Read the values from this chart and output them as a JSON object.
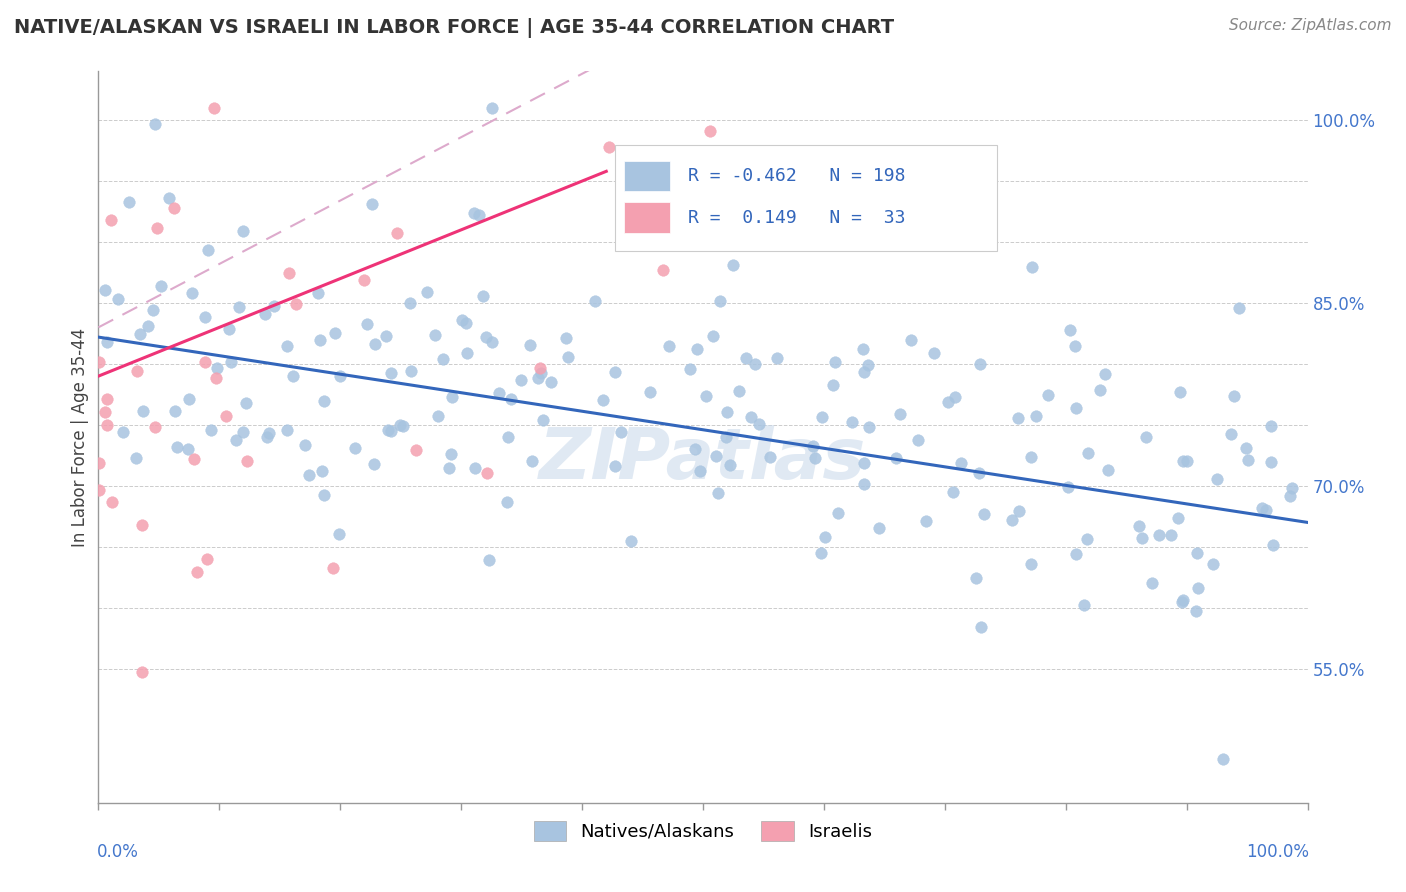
{
  "title": "NATIVE/ALASKAN VS ISRAELI IN LABOR FORCE | AGE 35-44 CORRELATION CHART",
  "source": "Source: ZipAtlas.com",
  "ylabel": "In Labor Force | Age 35-44",
  "ytick_vals": [
    0.55,
    0.6,
    0.65,
    0.7,
    0.75,
    0.8,
    0.85,
    0.9,
    0.95,
    1.0
  ],
  "ytick_labels_right": [
    "55.0%",
    "",
    "",
    "70.0%",
    "",
    "",
    "85.0%",
    "",
    "",
    "100.0%"
  ],
  "xlim": [
    0.0,
    1.0
  ],
  "ylim": [
    0.44,
    1.04
  ],
  "blue_R": -0.462,
  "blue_N": 198,
  "pink_R": 0.149,
  "pink_N": 33,
  "blue_scatter_color": "#a8c4e0",
  "pink_scatter_color": "#f4a0b0",
  "blue_line_color": "#3366bb",
  "pink_line_color": "#ee3377",
  "pink_dash_color": "#ddaacc",
  "legend_label_blue": "Natives/Alaskans",
  "legend_label_pink": "Israelis",
  "title_fontsize": 14,
  "source_fontsize": 11,
  "watermark": "ZIPatlas",
  "blue_intercept": 0.822,
  "blue_slope": -0.152,
  "pink_intercept": 0.79,
  "pink_slope": 0.4,
  "pink_dash_intercept": 0.83,
  "pink_dash_slope": 0.52,
  "grid_color": "#cccccc",
  "axis_color": "#999999"
}
